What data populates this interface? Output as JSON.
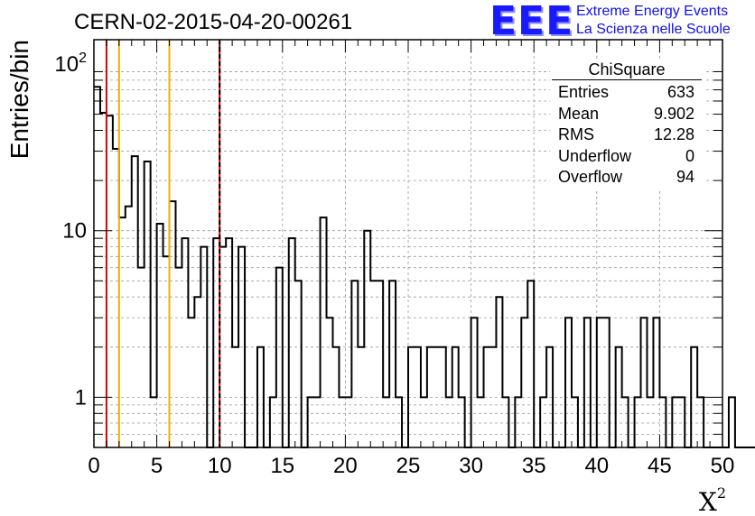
{
  "header": {
    "run_title": "CERN-02-2015-04-20-00261"
  },
  "logo": {
    "mark": "EEE",
    "line1": "Extreme Energy Events",
    "line2": "La Scienza nelle Scuole"
  },
  "stats_box": {
    "title": "ChiSquare",
    "rows": [
      {
        "label": "Entries",
        "value": "633"
      },
      {
        "label": "Mean",
        "value": "9.902"
      },
      {
        "label": "RMS",
        "value": "12.28"
      },
      {
        "label": "Underflow",
        "value": "0"
      },
      {
        "label": "Overflow",
        "value": "94"
      }
    ]
  },
  "chart_data": {
    "type": "histogram",
    "ylabel": "Entries/bin",
    "xlabel_base": "X",
    "xlabel_sup": "2",
    "xlim": [
      0,
      50
    ],
    "ylim": [
      0.5,
      140
    ],
    "y_scale": "log",
    "grid": true,
    "bin_width": 0.5,
    "x_ticks": [
      0,
      5,
      10,
      15,
      20,
      25,
      30,
      35,
      40,
      45,
      50
    ],
    "y_tick_labels": [
      {
        "value": 1,
        "label": "1"
      },
      {
        "value": 10,
        "label": "10"
      },
      {
        "value": 100,
        "label": "10",
        "sup": "2"
      }
    ],
    "values": [
      73,
      51,
      49,
      31,
      12,
      14,
      28,
      6,
      26,
      1,
      11,
      7,
      15,
      6,
      9,
      3,
      4,
      8,
      0,
      9,
      8,
      9,
      2,
      8,
      0,
      0,
      2,
      0,
      1,
      6,
      0,
      9,
      5,
      0,
      1,
      1,
      12,
      3,
      2,
      1,
      1,
      5,
      2,
      10,
      5,
      5,
      1,
      5,
      1,
      0,
      2,
      2,
      1,
      2,
      2,
      2,
      1,
      2,
      1,
      0,
      3,
      1,
      2,
      2,
      4,
      1,
      0,
      1,
      3,
      5,
      0,
      1,
      2,
      0,
      0,
      3,
      1,
      0,
      3,
      0,
      3,
      3,
      0,
      2,
      1,
      0,
      1,
      3,
      1,
      3,
      1,
      0,
      1,
      1,
      0,
      2,
      1,
      0,
      0,
      0,
      0,
      1,
      0,
      0,
      0,
      0,
      0,
      0,
      0,
      0
    ],
    "vertical_lines": [
      {
        "x": 1,
        "color": "#dd0000",
        "style": "solid"
      },
      {
        "x": 2,
        "color": "#f0b000",
        "style": "solid"
      },
      {
        "x": 6,
        "color": "#f0b000",
        "style": "solid"
      },
      {
        "x": 10,
        "color": "#dd0000",
        "style": "dashed"
      }
    ]
  }
}
